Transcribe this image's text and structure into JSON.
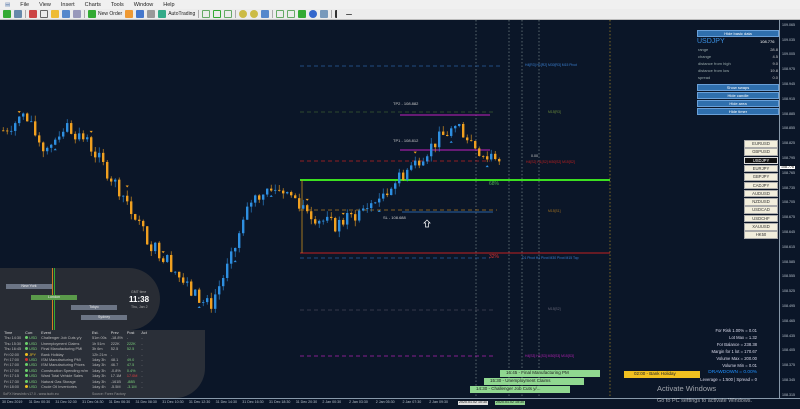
{
  "menu": [
    "File",
    "View",
    "Insert",
    "Charts",
    "Tools",
    "Window",
    "Help"
  ],
  "toolbar": {
    "new_order": "New Order",
    "autotrading": "AutoTrading"
  },
  "symbol": "USDJPY",
  "basic_data": {
    "hide_button": "Hide basic data",
    "price": "108.776",
    "rows": [
      {
        "label": "range",
        "value": "28.8"
      },
      {
        "label": "change",
        "value": "4.5"
      },
      {
        "label": "distance from high",
        "value": "9.0"
      },
      {
        "label": "distance from low",
        "value": "19.8"
      },
      {
        "label": "spread",
        "value": "0.0"
      }
    ],
    "buttons": [
      "Show swaps",
      "Hide candle",
      "Hide area",
      "Hide timer"
    ]
  },
  "symbols": [
    "EURUSD",
    "GBPUSD",
    "USDJPY",
    "EURJPY",
    "GBPJPY",
    "CADJPY",
    "AUDUSD",
    "NZDUSD",
    "USDCAD",
    "USDCHF",
    "XAUUSD",
    "HK50"
  ],
  "selected_symbol": "USDJPY",
  "price_axis": {
    "ticks": [
      "109.065",
      "109.035",
      "109.005",
      "108.975",
      "108.945",
      "108.915",
      "108.885",
      "108.855",
      "108.825",
      "108.795",
      "108.765",
      "108.735",
      "108.705",
      "108.675",
      "108.645",
      "108.615",
      "108.585",
      "108.555",
      "108.525",
      "108.495",
      "108.465",
      "108.435",
      "108.405",
      "108.375",
      "108.345",
      "108.315"
    ],
    "current": "108.776"
  },
  "time_axis": {
    "ticks": [
      "30 Dec 2019",
      "31 Dec 00:30",
      "31 Dec 02:30",
      "31 Dec 04:30",
      "31 Dec 06:30",
      "31 Dec 08:30",
      "31 Dec 10:30",
      "31 Dec 12:30",
      "31 Dec 14:30",
      "31 Dec 16:30",
      "31 Dec 18:30",
      "31 Dec 20:30",
      "2 Jan 00:30",
      "2 Jan 03:30",
      "2 Jan 05:30",
      "2 Jan 07:30",
      "2 Jan 09:30"
    ],
    "cursor": "2020.01.02 10:30",
    "event_marker": "2020.01.02 15:30"
  },
  "price_path": [
    108.848,
    108.878,
    108.808,
    108.858,
    108.828,
    108.767,
    108.706,
    108.625,
    108.585,
    108.524,
    108.493,
    108.585,
    108.706,
    108.737,
    108.716,
    108.676,
    108.655,
    108.676,
    108.706,
    108.747,
    108.787,
    108.828,
    108.858,
    108.808,
    108.777
  ],
  "levels": {
    "tp2": "TP2 - 108.882",
    "tp1": "TP1 - 108.812",
    "sl": "SL - 108.688",
    "pct_up": "68%",
    "pct_down": "32%",
    "zero": "0.00",
    "r_top": "H4[R3] H1[R2] M30[R3] M15 Pivot",
    "m15_r3": "M15[R3]",
    "red_label": "H4[S2] H1[S2] M30[S2] M15[S2]",
    "m15_s1": "M15[S1]",
    "pivot": "D1 Pivot H4 Pivot M30 Pivot M15 Top",
    "m15_s2": "M15[S2]",
    "s_bottom": "H4[S3] H1[S3] M30[S3] M15[S3]"
  },
  "events": [
    {
      "label": "16:45 - Final Manufacturing PM"
    },
    {
      "label": "15:30 - Unemployment Claims"
    },
    {
      "label": "14:30 - Challenger Job Cuts y/..."
    },
    {
      "label": "02:00 - Bank Holiday"
    }
  ],
  "sessions": {
    "cities": [
      "New York",
      "London",
      "Tokyo",
      "Sydney"
    ],
    "gmt_label": "GMT time",
    "time": "11:38",
    "date": "Thu, Jan 2"
  },
  "news": {
    "headers": [
      "Time",
      "Curr.",
      "Event",
      "Est.",
      "Prev",
      "Post",
      "Act"
    ],
    "rows": [
      {
        "day": "Thu",
        "time": "14:30",
        "cur": "USD",
        "impact": "#6bd06b",
        "event": "Challenger Job Cuts y/y",
        "est": "51m 00s",
        "prev": "-18.8%",
        "post": "-",
        "act": "-"
      },
      {
        "day": "Thu",
        "time": "15:30",
        "cur": "USD",
        "impact": "#6bd06b",
        "event": "Unemployment Claims",
        "est": "1h 51m",
        "prev": "222K",
        "post": "222K",
        "act": "-"
      },
      {
        "day": "Thu",
        "time": "16:45",
        "cur": "USD",
        "impact": "#6bd06b",
        "event": "Final Manufacturing PMI",
        "est": "3h 6m",
        "prev": "52.5",
        "post": "52.5",
        "act": "-"
      },
      {
        "day": "Fri",
        "time": "02:00",
        "cur": "JPY",
        "impact": "#f0c020",
        "event": "Bank Holiday",
        "est": "12h 21m",
        "prev": "-",
        "post": "-",
        "act": "-"
      },
      {
        "day": "Fri",
        "time": "17:00",
        "cur": "USD",
        "impact": "#d03030",
        "event": "ISM Manufacturing PMI",
        "est": "1day 3h",
        "prev": "48.1",
        "post": "49.0",
        "act": "-"
      },
      {
        "day": "Fri",
        "time": "17:00",
        "cur": "USD",
        "impact": "#6bd06b",
        "event": "ISM Manufacturing Prices",
        "est": "1day 3h",
        "prev": "46.7",
        "post": "47.5",
        "act": "-"
      },
      {
        "day": "Fri",
        "time": "17:00",
        "cur": "USD",
        "impact": "#6bd06b",
        "event": "Construction Spending m/m",
        "est": "1day 3h",
        "prev": "-0.8%",
        "post": "0.4%",
        "act": "-"
      },
      {
        "day": "Fri",
        "time": "17:15",
        "cur": "USD",
        "impact": "#6bd06b",
        "event": "Ward Total Vehicle Sales",
        "est": "1day 3h",
        "prev": "17.1M",
        "post": "17.0M",
        "act": "-"
      },
      {
        "day": "Fri",
        "time": "17:30",
        "cur": "USD",
        "impact": "#6bd06b",
        "event": "Natural Gas Storage",
        "est": "1day 3h",
        "prev": "-161B",
        "post": "-88B",
        "act": "-"
      },
      {
        "day": "Fri",
        "time": "18:00",
        "cur": "USD",
        "impact": "#f0c020",
        "event": "Crude Oil Inventories",
        "est": "1day 4h",
        "prev": "-5.5M",
        "post": "-3.1M",
        "act": "-"
      }
    ],
    "footer_left": "SoFX NewsInfo v17.0  -  www.isofx.eu",
    "footer_right": "Source: Forex Factory"
  },
  "account": {
    "lines": [
      "For Risk 1.00% = 0.01",
      "Lot Max = 1.32",
      "For Balance = 238.38",
      "Margin for 1 lot = 170.67",
      "Volume Max = 200.00",
      "Volume Min = 0.01"
    ],
    "drawdown": "DRAWDOWN = 0.00%",
    "leverage": "Leverage = 1:500 | Spread = 0"
  },
  "watermark": {
    "title": "Activate Windows",
    "subtitle": "Go to PC settings to activate Windows."
  },
  "colors": {
    "bull": "#2e8fe0",
    "bear": "#f0a020",
    "background": "#0b1628",
    "accent": "#2f6fad"
  }
}
